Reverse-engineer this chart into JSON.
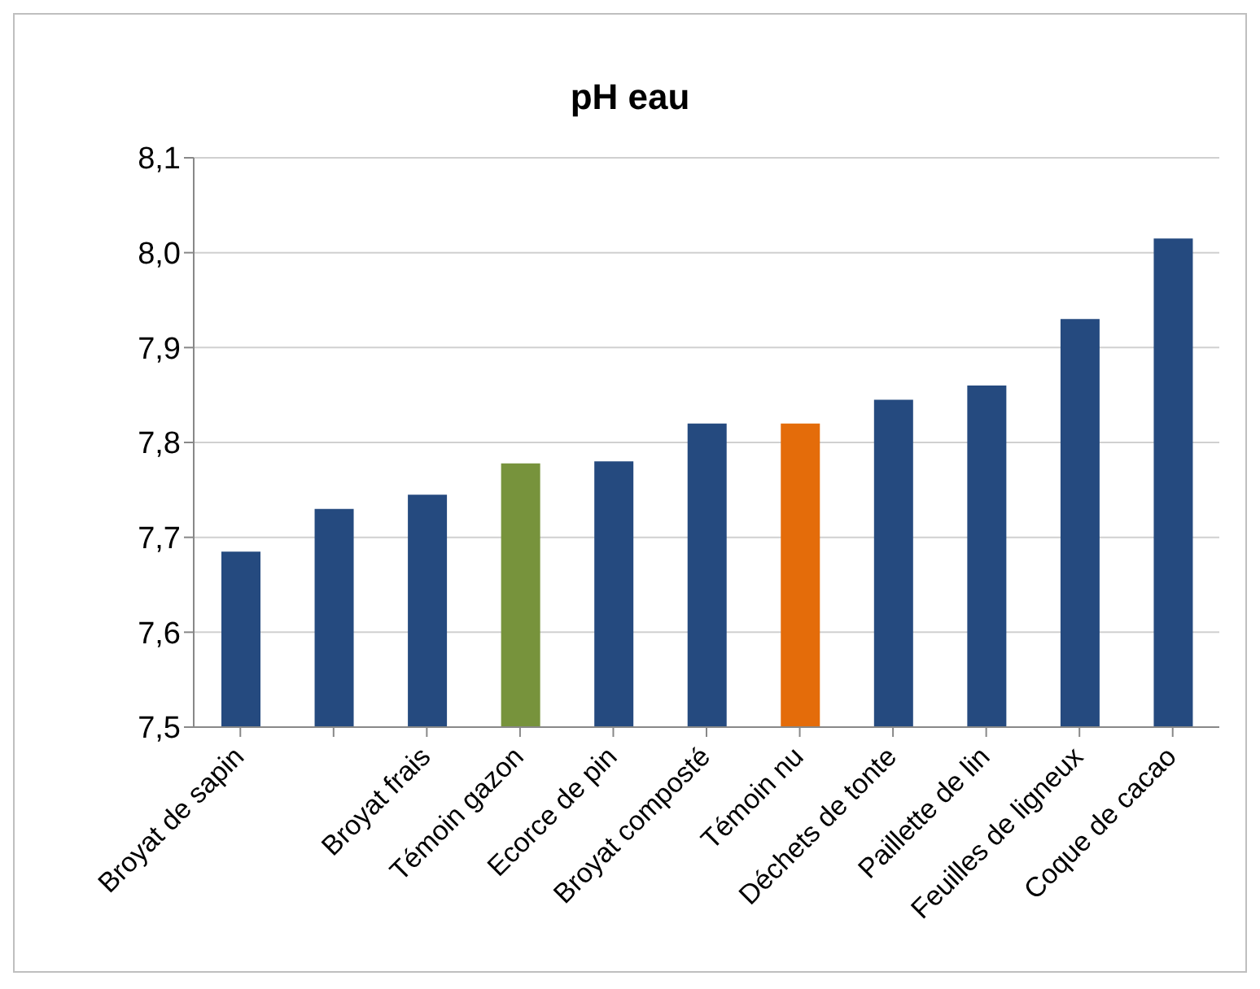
{
  "chart_data": {
    "type": "bar",
    "title": "pH eau",
    "categories": [
      "Broyat de sapin",
      null,
      "Broyat frais",
      "Témoin gazon",
      "Ecorce de pin",
      "Broyat composté",
      "Témoin nu",
      "Déchets de tonte",
      "Paillette de lin",
      "Feuilles de ligneux",
      "Coque de cacao"
    ],
    "values": [
      7.685,
      7.73,
      7.745,
      7.778,
      7.78,
      7.82,
      7.82,
      7.845,
      7.86,
      7.93,
      8.015
    ],
    "colors": [
      "#254a7f",
      "#254a7f",
      "#254a7f",
      "#77933c",
      "#254a7f",
      "#254a7f",
      "#e46c0a",
      "#254a7f",
      "#254a7f",
      "#254a7f",
      "#254a7f"
    ],
    "ylim": [
      7.5,
      8.1
    ],
    "yticks": [
      {
        "value": 7.5,
        "label": "7,5"
      },
      {
        "value": 7.6,
        "label": "7,6"
      },
      {
        "value": 7.7,
        "label": "7,7"
      },
      {
        "value": 7.8,
        "label": "7,8"
      },
      {
        "value": 7.9,
        "label": "7,9"
      },
      {
        "value": 8.0,
        "label": "8,0"
      },
      {
        "value": 8.1,
        "label": "8,1"
      }
    ],
    "grid": "y",
    "legend": false
  }
}
